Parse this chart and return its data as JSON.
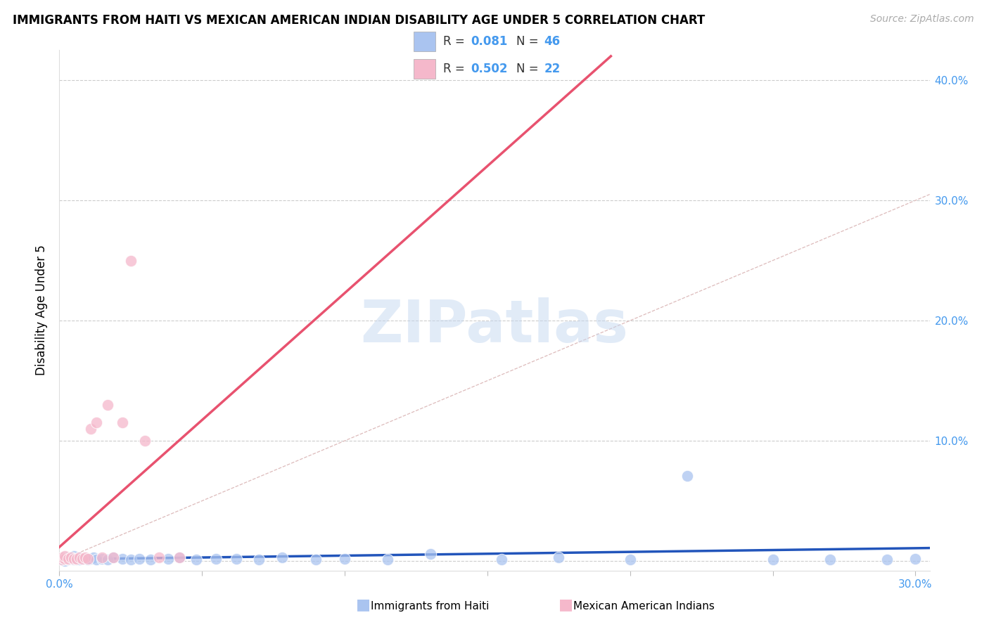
{
  "title": "IMMIGRANTS FROM HAITI VS MEXICAN AMERICAN INDIAN DISABILITY AGE UNDER 5 CORRELATION CHART",
  "source": "Source: ZipAtlas.com",
  "ylabel": "Disability Age Under 5",
  "xlim": [
    0.0,
    0.305
  ],
  "ylim": [
    -0.008,
    0.425
  ],
  "haiti_R": "0.081",
  "haiti_N": "46",
  "mex_R": "0.502",
  "mex_N": "22",
  "haiti_color": "#aac4f0",
  "mex_color": "#f5b8cb",
  "haiti_line_color": "#2255bb",
  "mex_line_color": "#e8526f",
  "diagonal_color": "#cccccc",
  "label_color": "#4499ee",
  "legend_text_color": "#2255bb",
  "haiti_legend": "Immigrants from Haiti",
  "mex_legend": "Mexican American Indians",
  "haiti_x": [
    0.001,
    0.001,
    0.002,
    0.002,
    0.003,
    0.003,
    0.004,
    0.004,
    0.005,
    0.005,
    0.006,
    0.006,
    0.007,
    0.007,
    0.008,
    0.009,
    0.01,
    0.011,
    0.012,
    0.013,
    0.015,
    0.017,
    0.019,
    0.022,
    0.025,
    0.028,
    0.032,
    0.038,
    0.042,
    0.048,
    0.055,
    0.062,
    0.07,
    0.078,
    0.09,
    0.1,
    0.115,
    0.13,
    0.155,
    0.175,
    0.2,
    0.22,
    0.25,
    0.27,
    0.29,
    0.3
  ],
  "haiti_y": [
    0.002,
    0.001,
    0.003,
    0.0,
    0.002,
    0.001,
    0.003,
    0.002,
    0.001,
    0.004,
    0.002,
    0.001,
    0.003,
    0.001,
    0.002,
    0.002,
    0.001,
    0.002,
    0.003,
    0.001,
    0.002,
    0.001,
    0.003,
    0.002,
    0.001,
    0.002,
    0.001,
    0.002,
    0.003,
    0.001,
    0.002,
    0.002,
    0.001,
    0.003,
    0.001,
    0.002,
    0.001,
    0.006,
    0.001,
    0.003,
    0.001,
    0.071,
    0.001,
    0.001,
    0.001,
    0.002
  ],
  "mex_x": [
    0.001,
    0.001,
    0.002,
    0.002,
    0.003,
    0.004,
    0.005,
    0.006,
    0.007,
    0.008,
    0.009,
    0.01,
    0.011,
    0.013,
    0.015,
    0.017,
    0.019,
    0.022,
    0.025,
    0.03,
    0.035,
    0.042
  ],
  "mex_y": [
    0.001,
    0.003,
    0.002,
    0.004,
    0.002,
    0.003,
    0.002,
    0.002,
    0.003,
    0.002,
    0.003,
    0.002,
    0.11,
    0.115,
    0.003,
    0.13,
    0.003,
    0.115,
    0.25,
    0.1,
    0.003,
    0.003
  ]
}
